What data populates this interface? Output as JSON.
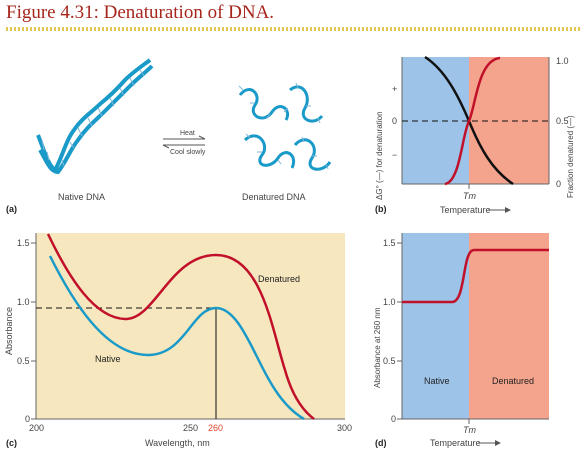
{
  "figure": {
    "title": "Figure 4.31: Denaturation of DNA."
  },
  "panel_a": {
    "tag": "(a)",
    "native_label": "Native DNA",
    "denatured_label": "Denatured DNA",
    "arrow_top": "Heat",
    "arrow_bottom": "Cool slowly"
  },
  "panel_b": {
    "tag": "(b)",
    "ylabel_left": "ΔG° (—) for denaturation",
    "ylabel_right": "Fraction denatured (—)",
    "xlabel": "Temperature",
    "tm": "Tm",
    "left_ticks": [
      "+",
      "0",
      "−"
    ],
    "right_ticks": [
      "1.0",
      "0.5",
      "0"
    ],
    "colors": {
      "native": "#9dc3e8",
      "denatured": "#f4a38c",
      "dg": "#111111",
      "fraction": "#c0102a"
    }
  },
  "panel_c": {
    "tag": "(c)",
    "ylabel": "Absorbance",
    "xlabel": "Wavelength, nm",
    "x_ticks": [
      "200",
      "250",
      "260",
      "300"
    ],
    "y_ticks": [
      "0",
      "0.5",
      "1.0",
      "1.5"
    ],
    "denatured_label": "Denatured",
    "native_label": "Native",
    "colors": {
      "denatured": "#c0102a",
      "native": "#1a9ac8",
      "background": "#f7e7bf"
    }
  },
  "panel_d": {
    "tag": "(d)",
    "ylabel": "Absorbance at 260 nm",
    "xlabel": "Temperature",
    "tm": "Tm",
    "y_ticks": [
      "0",
      "0.5",
      "1.0",
      "1.5"
    ],
    "native_region": "Native",
    "denatured_region": "Denatured",
    "colors": {
      "native": "#9dc3e8",
      "denatured": "#f4a38c",
      "curve": "#c0102a"
    }
  }
}
